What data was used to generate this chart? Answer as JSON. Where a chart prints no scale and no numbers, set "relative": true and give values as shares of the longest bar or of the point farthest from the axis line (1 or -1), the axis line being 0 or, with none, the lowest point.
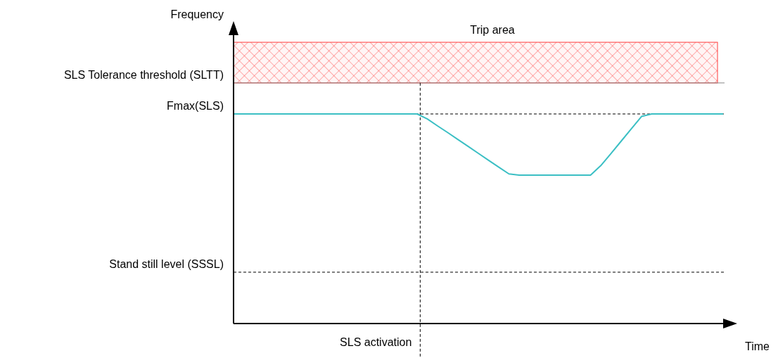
{
  "chart_data": {
    "type": "line",
    "relative": true,
    "xlabel": "Time",
    "annotations": [
      "Frequency",
      "SLS activation"
    ],
    "categories": [
      null,
      null,
      null,
      null,
      null,
      null,
      null,
      null,
      null,
      null,
      null,
      null,
      null,
      null,
      null,
      null,
      null,
      null,
      null,
      null,
      null,
      null,
      null,
      null,
      null,
      null,
      null,
      null,
      null,
      null,
      null,
      null,
      null,
      null,
      null,
      null,
      null,
      null,
      null,
      null,
      null,
      null,
      null,
      null,
      null,
      null,
      null,
      null,
      null
    ],
    "series": [
      {
        "color": "#3bbfc4",
        "values": [
          1,
          1,
          1,
          1,
          1,
          1,
          1,
          1,
          1,
          1,
          1,
          1,
          1,
          1,
          1,
          1,
          1,
          1,
          1,
          0.976,
          0.943,
          0.911,
          0.878,
          0.845,
          0.812,
          0.779,
          0.746,
          0.714,
          0.708,
          0.708,
          0.708,
          0.708,
          0.708,
          0.708,
          0.708,
          0.708,
          0.753,
          0.811,
          0.87,
          0.929,
          0.988,
          1,
          1,
          1,
          1,
          1,
          1,
          1,
          1
        ]
      }
    ],
    "ref_lines": [
      {
        "axis": "y",
        "value": 1.148,
        "label": "SLS Tolerance threshold (SLTT)",
        "color": "#888888",
        "line_style": "solid"
      },
      {
        "axis": "y",
        "value": 1,
        "label": "Fmax(SLS)",
        "color": "#000000",
        "line_style": "dashed"
      },
      {
        "axis": "y",
        "value": 0.245,
        "label": "Stand still level (SSSL)",
        "color": "#000000",
        "line_style": "dashed"
      }
    ],
    "bands": [
      {
        "axis": "y",
        "from": 1.148,
        "to": 1.342,
        "label": "Trip area",
        "color": "#ff3b3b"
      }
    ],
    "line_style": "solid",
    "marker": "none"
  }
}
